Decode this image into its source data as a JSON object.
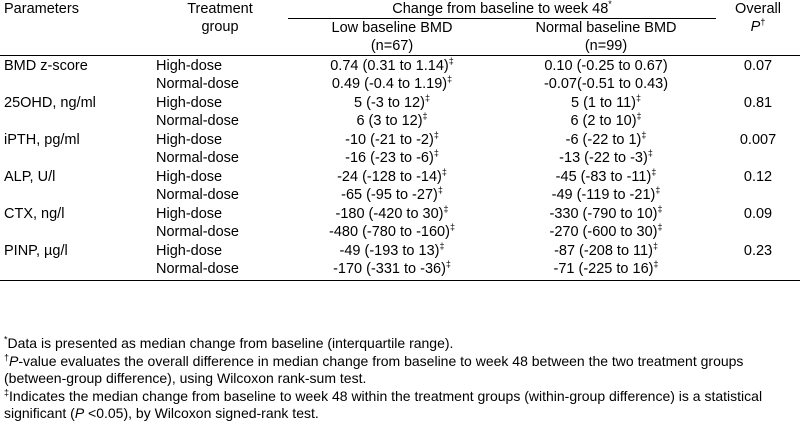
{
  "header": {
    "parameters": "Parameters",
    "treatment_group_line1": "Treatment",
    "treatment_group_line2": "group",
    "change": "Change from baseline to week 48",
    "change_mark": "*",
    "overall_line1": "Overall",
    "overall_p": "P",
    "overall_mark": "†",
    "low_bmd": "Low baseline BMD",
    "low_n": "(n=67)",
    "normal_bmd": "Normal baseline BMD",
    "normal_n": "(n=99)"
  },
  "rows": [
    {
      "param": "BMD z-score",
      "p": "0.07",
      "high": {
        "group": "High-dose",
        "low": "0.74 (0.31 to 1.14)",
        "low_mark": "‡",
        "normal": "0.10 (-0.25 to 0.67)",
        "normal_mark": ""
      },
      "norm": {
        "group": "Normal-dose",
        "low": "0.49 (-0.4 to 1.19)",
        "low_mark": "‡",
        "normal": "-0.07(-0.51 to 0.43)",
        "normal_mark": ""
      }
    },
    {
      "param": "25OHD, ng/ml",
      "p": "0.81",
      "high": {
        "group": "High-dose",
        "low": "5 (-3 to 12)",
        "low_mark": "‡",
        "normal": "5 (1 to 11)",
        "normal_mark": "‡"
      },
      "norm": {
        "group": "Normal-dose",
        "low": "6 (3 to 12)",
        "low_mark": "‡",
        "normal": "6 (2 to 10)",
        "normal_mark": "‡"
      }
    },
    {
      "param": "iPTH, pg/ml",
      "p": "0.007",
      "high": {
        "group": "High-dose",
        "low": "-10 (-21 to -2)",
        "low_mark": "‡",
        "normal": "-6 (-22 to 1)",
        "normal_mark": "‡"
      },
      "norm": {
        "group": "Normal-dose",
        "low": "-16 (-23 to -6)",
        "low_mark": "‡",
        "normal": "-13 (-22 to -3)",
        "normal_mark": "‡"
      }
    },
    {
      "param": "ALP, U/l",
      "p": "0.12",
      "high": {
        "group": "High-dose",
        "low": "-24 (-128 to -14)",
        "low_mark": "‡",
        "normal": "-45 (-83 to -11)",
        "normal_mark": "‡"
      },
      "norm": {
        "group": "Normal-dose",
        "low": "-65 (-95 to -27)",
        "low_mark": "‡",
        "normal": "-49 (-119 to -21)",
        "normal_mark": "‡"
      }
    },
    {
      "param": "CTX, ng/l",
      "p": "0.09",
      "high": {
        "group": "High-dose",
        "low": "-180 (-420 to 30)",
        "low_mark": "‡",
        "normal": "-330 (-790 to 10)",
        "normal_mark": "‡"
      },
      "norm": {
        "group": "Normal-dose",
        "low": "-480 (-780 to -160)",
        "low_mark": "‡",
        "normal": "-270 (-600 to 30)",
        "normal_mark": "‡"
      }
    },
    {
      "param": "PINP, µg/l",
      "p": "0.23",
      "high": {
        "group": "High-dose",
        "low": "-49 (-193 to 13)",
        "low_mark": "‡",
        "normal": "-87 (-208 to 11)",
        "normal_mark": "‡"
      },
      "norm": {
        "group": "Normal-dose",
        "low": "-170 (-331 to -36)",
        "low_mark": "‡",
        "normal": "-71 (-225 to 16)",
        "normal_mark": "‡"
      }
    }
  ],
  "footnotes": {
    "star_mark": "*",
    "star_text": "Data is presented as median change from baseline (interquartile range).",
    "dagger_mark": "†",
    "dagger_p": "P",
    "dagger_text": "-value evaluates the overall difference in median change from baseline to week 48 between the two treatment groups (between-group difference), using Wilcoxon rank-sum test.",
    "ddagger_mark": "‡",
    "ddagger_text1": "Indicates the median change from baseline to week 48 within the treatment groups (within-group difference) is a statistical significant (",
    "ddagger_p": "P",
    "ddagger_text2": " <0.05), by Wilcoxon signed-rank test."
  }
}
